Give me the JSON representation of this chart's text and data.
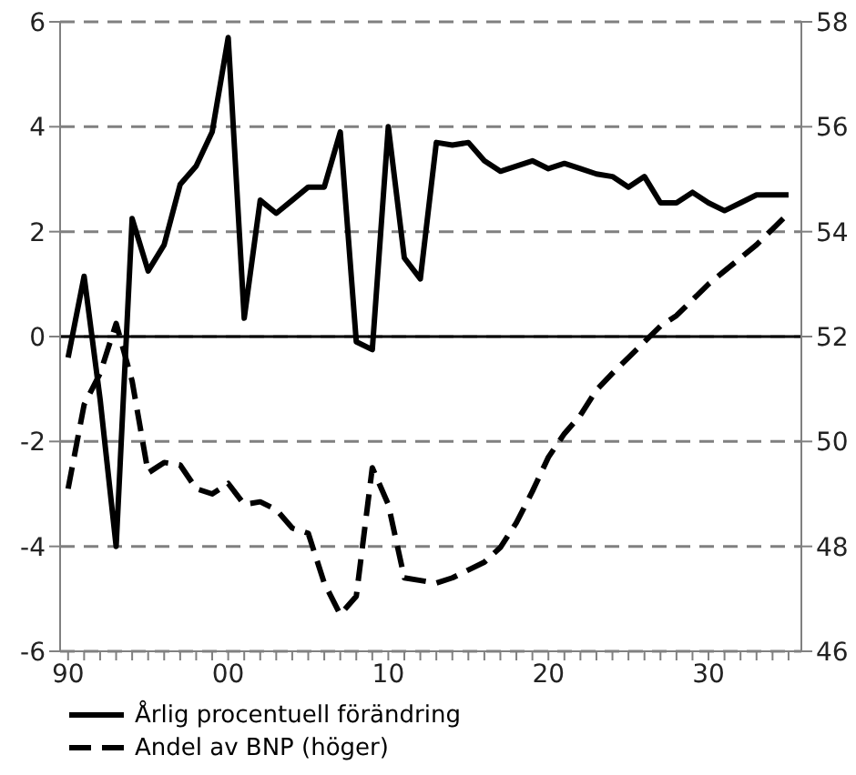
{
  "chart_data": {
    "type": "line",
    "x": [
      1990,
      1991,
      1992,
      1993,
      1994,
      1995,
      1996,
      1997,
      1998,
      1999,
      2000,
      2001,
      2002,
      2003,
      2004,
      2005,
      2006,
      2007,
      2008,
      2009,
      2010,
      2011,
      2012,
      2013,
      2014,
      2015,
      2016,
      2017,
      2018,
      2019,
      2020,
      2021,
      2022,
      2023,
      2024,
      2025,
      2026,
      2027,
      2028,
      2029,
      2030,
      2031,
      2032,
      2033,
      2034,
      2035
    ],
    "series": [
      {
        "name": "Årlig procentuell förändring",
        "color": "#000000",
        "line_style": "solid",
        "values": [
          -0.4,
          1.15,
          -1.2,
          -4.0,
          2.25,
          1.25,
          1.75,
          2.9,
          3.25,
          3.9,
          5.7,
          0.35,
          2.6,
          2.35,
          2.6,
          2.85,
          2.85,
          3.9,
          -0.1,
          -0.25,
          4.0,
          1.5,
          1.1,
          3.7,
          3.65,
          3.7,
          3.35,
          3.15,
          3.25,
          3.35,
          3.2,
          3.3,
          3.2,
          3.1,
          3.05,
          2.85,
          3.05,
          2.55,
          2.55,
          2.75,
          2.55,
          2.4,
          2.55,
          2.7,
          2.7,
          2.7
        ]
      },
      {
        "name": "Andel av BNP (höger)",
        "color": "#000000",
        "line_style": "dashed",
        "axis": "y2",
        "values": [
          49.1,
          50.7,
          51.3,
          52.25,
          51.15,
          49.4,
          49.6,
          49.55,
          49.1,
          49.0,
          49.2,
          48.8,
          48.85,
          48.7,
          48.35,
          48.25,
          47.3,
          46.7,
          47.05,
          49.5,
          48.8,
          47.4,
          47.35,
          47.3,
          47.4,
          47.55,
          47.7,
          47.98,
          48.45,
          49.05,
          49.7,
          50.15,
          50.5,
          50.98,
          51.3,
          51.6,
          51.9,
          52.2,
          52.4,
          52.7,
          53.0,
          53.25,
          53.5,
          53.75,
          54.05,
          54.35
        ]
      }
    ],
    "xlim": [
      1989.5,
      2035.8
    ],
    "xticks": [
      {
        "value": 1990,
        "label": "90"
      },
      {
        "value": 1991,
        "label": null
      },
      {
        "value": 1992,
        "label": null
      },
      {
        "value": 1993,
        "label": null
      },
      {
        "value": 1994,
        "label": null
      },
      {
        "value": 1995,
        "label": null
      },
      {
        "value": 1996,
        "label": null
      },
      {
        "value": 1997,
        "label": null
      },
      {
        "value": 1998,
        "label": null
      },
      {
        "value": 1999,
        "label": null
      },
      {
        "value": 2000,
        "label": "00"
      },
      {
        "value": 2001,
        "label": null
      },
      {
        "value": 2002,
        "label": null
      },
      {
        "value": 2003,
        "label": null
      },
      {
        "value": 2004,
        "label": null
      },
      {
        "value": 2005,
        "label": null
      },
      {
        "value": 2006,
        "label": null
      },
      {
        "value": 2007,
        "label": null
      },
      {
        "value": 2008,
        "label": null
      },
      {
        "value": 2009,
        "label": null
      },
      {
        "value": 2010,
        "label": "10"
      },
      {
        "value": 2011,
        "label": null
      },
      {
        "value": 2012,
        "label": null
      },
      {
        "value": 2013,
        "label": null
      },
      {
        "value": 2014,
        "label": null
      },
      {
        "value": 2015,
        "label": null
      },
      {
        "value": 2016,
        "label": null
      },
      {
        "value": 2017,
        "label": null
      },
      {
        "value": 2018,
        "label": null
      },
      {
        "value": 2019,
        "label": null
      },
      {
        "value": 2020,
        "label": "20"
      },
      {
        "value": 2021,
        "label": null
      },
      {
        "value": 2022,
        "label": null
      },
      {
        "value": 2023,
        "label": null
      },
      {
        "value": 2024,
        "label": null
      },
      {
        "value": 2025,
        "label": null
      },
      {
        "value": 2026,
        "label": null
      },
      {
        "value": 2027,
        "label": null
      },
      {
        "value": 2028,
        "label": null
      },
      {
        "value": 2029,
        "label": null
      },
      {
        "value": 2030,
        "label": "30"
      },
      {
        "value": 2031,
        "label": null
      },
      {
        "value": 2032,
        "label": null
      },
      {
        "value": 2033,
        "label": null
      },
      {
        "value": 2034,
        "label": null
      },
      {
        "value": 2035,
        "label": null
      }
    ],
    "ylim": [
      -6,
      6
    ],
    "yticks": [
      -6,
      -4,
      -2,
      0,
      2,
      4,
      6
    ],
    "y2lim": [
      46,
      58
    ],
    "y2ticks": [
      46,
      48,
      50,
      52,
      54,
      56,
      58
    ],
    "ref_lines": [
      {
        "axis": "y",
        "value": 0,
        "color": "#000000",
        "line_style": "solid"
      }
    ],
    "grid": "y",
    "legend": "bottom left",
    "marker": "none"
  }
}
